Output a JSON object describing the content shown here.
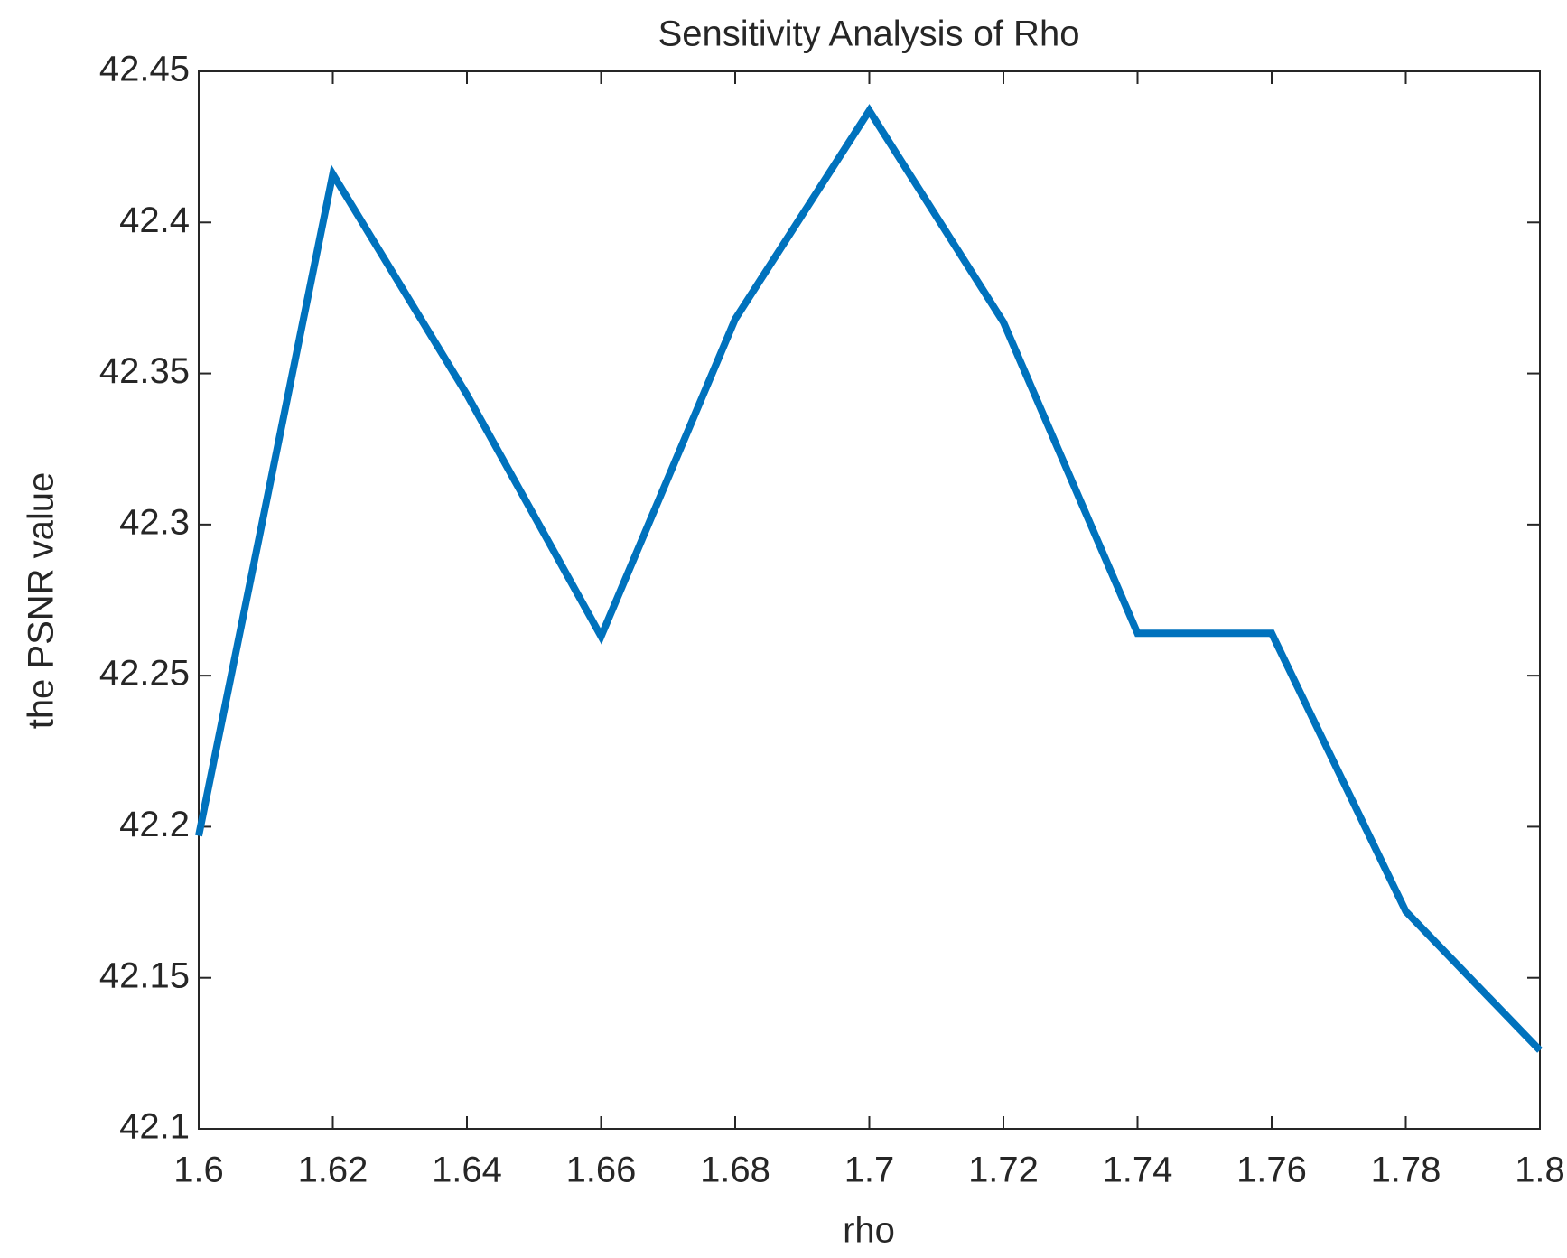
{
  "chart_data": {
    "type": "line",
    "title": "Sensitivity Analysis of Rho",
    "x_label": "rho",
    "y_label": "the PSNR value",
    "x": [
      1.6,
      1.62,
      1.64,
      1.66,
      1.68,
      1.7,
      1.72,
      1.74,
      1.76,
      1.78,
      1.8
    ],
    "series": [
      {
        "color": "#0072bd",
        "values": [
          42.197,
          42.416,
          42.343,
          42.263,
          42.368,
          42.437,
          42.367,
          42.264,
          42.264,
          42.172,
          42.126
        ]
      }
    ],
    "xlim": [
      1.6,
      1.8
    ],
    "xticks": [
      1.6,
      1.62,
      1.64,
      1.66,
      1.68,
      1.7,
      1.72,
      1.74,
      1.76,
      1.78,
      1.8
    ],
    "ylim": [
      42.1,
      42.45
    ],
    "yticks": [
      42.1,
      42.15,
      42.2,
      42.25,
      42.3,
      42.35,
      42.4,
      42.45
    ],
    "grid": false
  }
}
